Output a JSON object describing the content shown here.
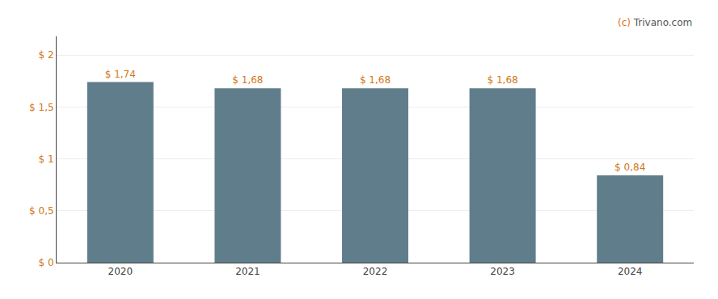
{
  "chart_data": {
    "type": "bar",
    "categories": [
      "2020",
      "2021",
      "2022",
      "2023",
      "2024"
    ],
    "values": [
      1.74,
      1.68,
      1.68,
      1.68,
      0.84
    ],
    "value_labels": [
      "$ 1,74",
      "$ 1,68",
      "$ 1,68",
      "$ 1,68",
      "$ 0,84"
    ],
    "data_labels": true,
    "color": "#607d8b",
    "ylim": [
      0,
      2.18
    ],
    "yticks": [
      {
        "value": 0,
        "label": "$ 0"
      },
      {
        "value": 0.5,
        "label": "$ 0,5"
      },
      {
        "value": 1.0,
        "label": "$ 1"
      },
      {
        "value": 1.5,
        "label": "$ 1,5"
      },
      {
        "value": 2.0,
        "label": "$ 2"
      }
    ],
    "grid": true,
    "annotations": [
      "(c) Trivano.com"
    ]
  }
}
